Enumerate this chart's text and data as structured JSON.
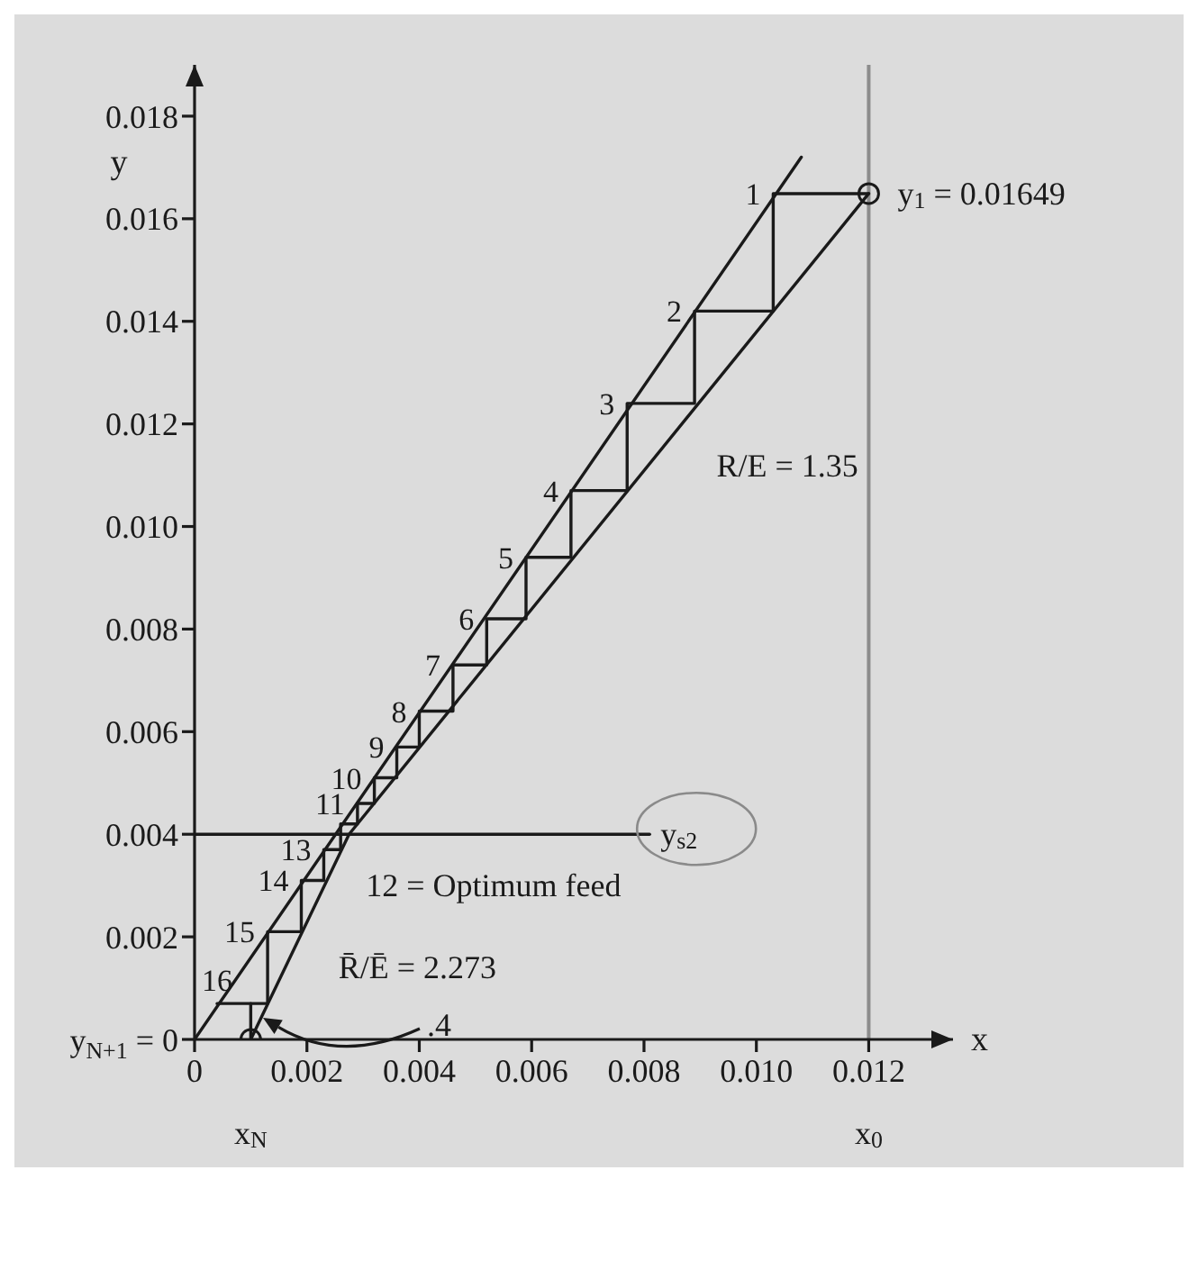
{
  "chart_data": {
    "type": "line",
    "xlabel": "x",
    "ylabel": "y",
    "xlim": [
      0,
      0.0135
    ],
    "ylim": [
      0,
      0.019
    ],
    "xticks": [
      0,
      0.002,
      0.004,
      0.006,
      0.008,
      {
        "value": 0.01,
        "label": "0.010"
      },
      0.012
    ],
    "yticks": [
      {
        "value": 0,
        "label": "y$_{N+1}$ = 0"
      },
      0.002,
      0.004,
      0.006,
      0.008,
      {
        "value": 0.01,
        "label": "0.010"
      },
      0.012,
      0.014,
      0.016,
      0.018
    ],
    "series": [
      {
        "color": "#1a1a1a",
        "x": [
          0,
          0.0108
        ],
        "values": [
          0,
          0.0172
        ]
      },
      {
        "color": "#1a1a1a",
        "x": [
          0.001,
          0.00275,
          0.012
        ],
        "values": [
          0,
          0.004,
          0.01649
        ]
      },
      {
        "color": "#1a1a1a",
        "x": [
          0,
          0.0081
        ],
        "values": [
          0.004,
          0.004
        ]
      },
      {
        "color": "#1a1a1a",
        "x": [
          0.012,
          0.0103,
          0.0103,
          0.0089,
          0.0089,
          0.0077,
          0.0077,
          0.0067,
          0.0067,
          0.0059,
          0.0059,
          0.0052,
          0.0052,
          0.0046,
          0.0046,
          0.004,
          0.004,
          0.0036,
          0.0036,
          0.0032,
          0.0032,
          0.0029,
          0.0029,
          0.0026,
          0.0026,
          0.0023,
          0.0023,
          0.0019,
          0.0019,
          0.0013,
          0.0013,
          0.0004
        ],
        "values": [
          0.01649,
          0.01649,
          0.0142,
          0.0142,
          0.0124,
          0.0124,
          0.0107,
          0.0107,
          0.0094,
          0.0094,
          0.0082,
          0.0082,
          0.0073,
          0.0073,
          0.0064,
          0.0064,
          0.0057,
          0.0057,
          0.0051,
          0.0051,
          0.0046,
          0.0046,
          0.0042,
          0.0042,
          0.0037,
          0.0037,
          0.0031,
          0.0031,
          0.0021,
          0.0021,
          0.0007,
          0.0007
        ]
      },
      {
        "color": "#1a1a1a",
        "x": [
          0.001,
          0.001
        ],
        "values": [
          0.0007,
          0
        ]
      },
      {
        "type": "scatter",
        "color": "#1a1a1a",
        "marker": "circle",
        "x": [
          0.012,
          0.001
        ],
        "values": [
          0.01649,
          0
        ]
      }
    ],
    "ref_lines": [
      {
        "axis": "x",
        "value": 0.012,
        "color": "#8c8c8c"
      }
    ],
    "annotations": [
      {
        "text": "y$_{1}$ = 0.01649",
        "x": 0.012,
        "y": 0.01649
      },
      {
        "text": "R/E = 1.35",
        "x": 0.0082,
        "y": 0.0114
      },
      {
        "text": "R̄/Ē = 2.273",
        "x": 0.0016,
        "y": 0.0014
      },
      {
        "text": "12 = Optimum feed",
        "x": 0.0026,
        "y": 0.0037
      },
      {
        "text": "y$_{s2}$",
        "x": 0.0081,
        "y": 0.004
      },
      ".4",
      {
        "text": "x$_{N}$",
        "x": 0.001,
        "y": 0
      },
      {
        "text": "x$_{0}$",
        "x": 0.012,
        "y": 0
      },
      {
        "text": "1",
        "x": 0.0103,
        "y": 0.01649
      },
      {
        "text": "2",
        "x": 0.0089,
        "y": 0.0142
      },
      {
        "text": "3",
        "x": 0.0077,
        "y": 0.0124
      },
      {
        "text": "4",
        "x": 0.0067,
        "y": 0.0107
      },
      {
        "text": "5",
        "x": 0.0059,
        "y": 0.0094
      },
      {
        "text": "6",
        "x": 0.0052,
        "y": 0.0082
      },
      {
        "text": "7",
        "x": 0.0046,
        "y": 0.0073
      },
      {
        "text": "8",
        "x": 0.004,
        "y": 0.0064
      },
      {
        "text": "9",
        "x": 0.0036,
        "y": 0.0057
      },
      {
        "text": "10",
        "x": 0.0032,
        "y": 0.0051
      },
      {
        "text": "11",
        "x": 0.0029,
        "y": 0.0046
      },
      {
        "text": "13",
        "x": 0.0023,
        "y": 0.0037
      },
      {
        "text": "14",
        "x": 0.0019,
        "y": 0.0031
      },
      {
        "text": "15",
        "x": 0.0013,
        "y": 0.0021
      },
      {
        "text": "16",
        "x": 0.0004,
        "y": 0.0007
      }
    ]
  }
}
